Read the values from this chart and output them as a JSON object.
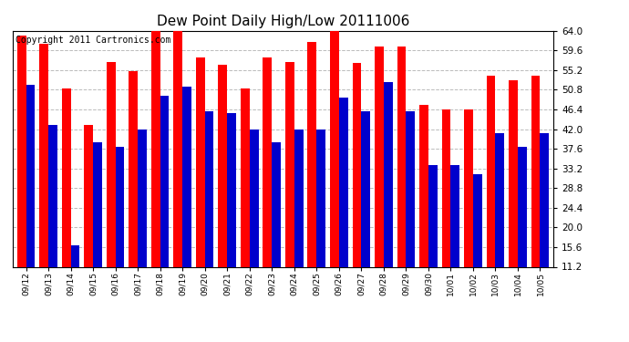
{
  "title": "Dew Point Daily High/Low 20111006",
  "copyright": "Copyright 2011 Cartronics.com",
  "categories": [
    "09/12",
    "09/13",
    "09/14",
    "09/15",
    "09/16",
    "09/17",
    "09/18",
    "09/19",
    "09/20",
    "09/21",
    "09/22",
    "09/23",
    "09/24",
    "09/25",
    "09/26",
    "09/27",
    "09/28",
    "09/29",
    "09/30",
    "10/01",
    "10/02",
    "10/03",
    "10/04",
    "10/05"
  ],
  "high_values": [
    63.0,
    61.0,
    51.0,
    43.0,
    57.0,
    55.0,
    64.5,
    65.0,
    58.0,
    56.5,
    51.0,
    58.0,
    57.0,
    61.5,
    64.0,
    56.8,
    60.5,
    60.5,
    47.5,
    46.5,
    46.5,
    54.0,
    53.0,
    54.0
  ],
  "low_values": [
    52.0,
    43.0,
    16.0,
    39.0,
    38.0,
    42.0,
    49.5,
    51.5,
    46.0,
    45.5,
    42.0,
    39.0,
    42.0,
    42.0,
    49.0,
    46.0,
    52.5,
    46.0,
    34.0,
    34.0,
    32.0,
    41.0,
    38.0,
    41.0
  ],
  "high_color": "#ff0000",
  "low_color": "#0000cc",
  "ylim_min": 11.2,
  "ylim_max": 64.0,
  "yticks": [
    11.2,
    15.6,
    20.0,
    24.4,
    28.8,
    33.2,
    37.6,
    42.0,
    46.4,
    50.8,
    55.2,
    59.6,
    64.0
  ],
  "bg_color": "#ffffff",
  "plot_bg": "#ffffff",
  "grid_color": "#bbbbbb",
  "bar_width": 0.4,
  "title_fontsize": 11,
  "copyright_fontsize": 7,
  "tick_fontsize": 7.5,
  "xtick_fontsize": 6.5
}
